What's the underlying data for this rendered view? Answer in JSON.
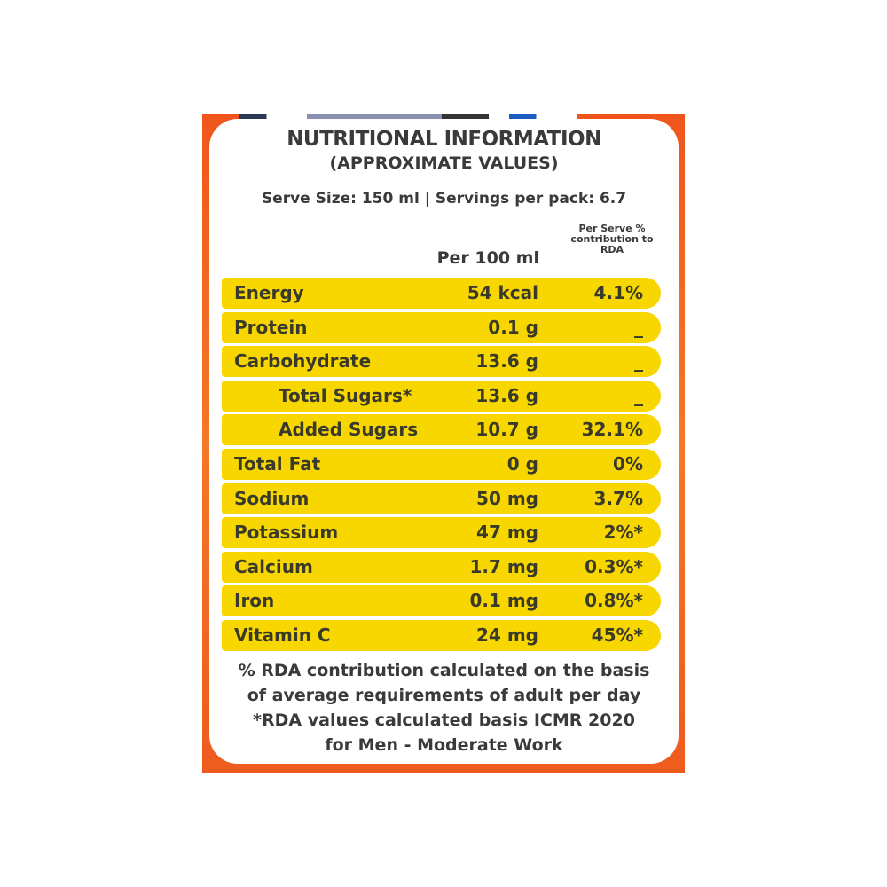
{
  "label": {
    "title": "NUTRITIONAL INFORMATION",
    "subtitle": "(APPROXIMATE VALUES)",
    "serving_info": "Serve Size: 150 ml | Servings per pack: 6.7",
    "column_per100": "Per 100 ml",
    "column_rda": "Per Serve % contribution to RDA",
    "colors": {
      "border": "#f0561c",
      "row": "#f8d600",
      "text": "#3a3a3a"
    },
    "rows": [
      {
        "name": "Energy",
        "value": "54 kcal",
        "rda": "4.1%"
      },
      {
        "name": "Protein",
        "value": "0.1 g",
        "rda": "_"
      },
      {
        "name": "Carbohydrate",
        "value": "13.6 g",
        "rda": "_"
      },
      {
        "name": "Total Sugars*",
        "value": "13.6 g",
        "rda": "_"
      },
      {
        "name": "Added Sugars",
        "value": "10.7 g",
        "rda": "32.1%"
      },
      {
        "name": "Total Fat",
        "value": "0 g",
        "rda": "0%"
      },
      {
        "name": "Sodium",
        "value": "50 mg",
        "rda": "3.7%"
      },
      {
        "name": "Potassium",
        "value": "47 mg",
        "rda": "2%*"
      },
      {
        "name": "Calcium",
        "value": "1.7 mg",
        "rda": "0.3%*"
      },
      {
        "name": "Iron",
        "value": "0.1 mg",
        "rda": "0.8%*"
      },
      {
        "name": "Vitamin C",
        "value": "24 mg",
        "rda": "45%*"
      }
    ],
    "footnotes": [
      "% RDA contribution calculated on the basis",
      "of average requirements of adult per day",
      "*RDA values calculated basis ICMR 2020",
      "for Men - Moderate Work"
    ]
  }
}
